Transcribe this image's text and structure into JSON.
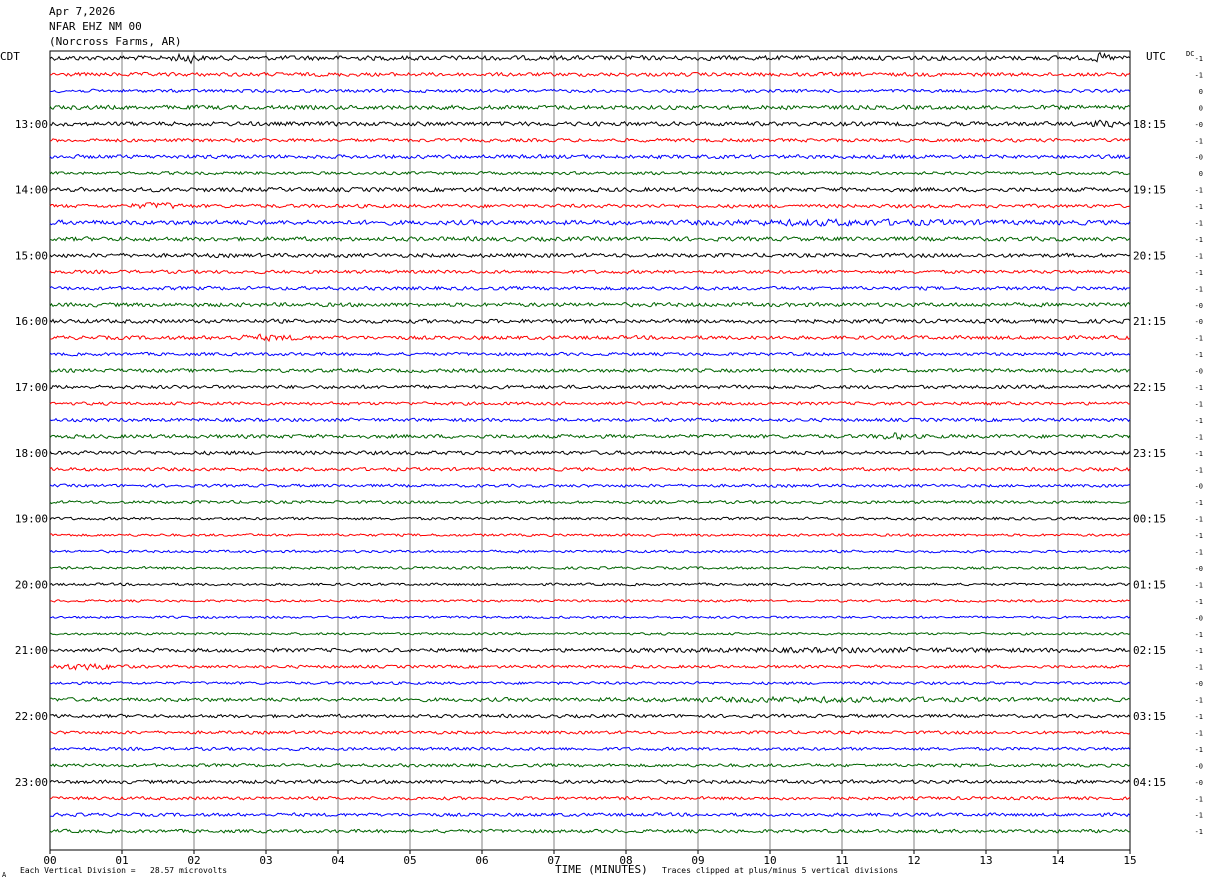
{
  "header": {
    "date": "Apr 7,2026",
    "station": "NFAR EHZ NM 00",
    "location": "(Norcross Farms, AR)"
  },
  "timezones": {
    "left": "CDT",
    "right": "UTC"
  },
  "dc_label": "DC",
  "footer": {
    "scale_note": "Each Vertical Division =   28.57 microvolts",
    "clip_note": "Traces clipped at plus/minus 5 vertical divisions",
    "x_title": "TIME (MINUTES)",
    "corner_mark": "A"
  },
  "colors": {
    "trace_cycle": [
      "#000000",
      "#ff0000",
      "#0000ff",
      "#006400"
    ],
    "grid": "#808080"
  },
  "chart_data": {
    "type": "line",
    "title": "NFAR EHZ NM 00",
    "xlabel": "TIME (MINUTES)",
    "xlim": [
      0,
      15
    ],
    "x_ticks": [
      "00",
      "01",
      "02",
      "03",
      "04",
      "05",
      "06",
      "07",
      "08",
      "09",
      "10",
      "11",
      "12",
      "13",
      "14",
      "15"
    ],
    "minutes_per_trace": 15,
    "trace_count": 48,
    "left_hour_labels": [
      {
        "trace": 4,
        "label": "13:00"
      },
      {
        "trace": 8,
        "label": "14:00"
      },
      {
        "trace": 12,
        "label": "15:00"
      },
      {
        "trace": 16,
        "label": "16:00"
      },
      {
        "trace": 20,
        "label": "17:00"
      },
      {
        "trace": 24,
        "label": "18:00"
      },
      {
        "trace": 28,
        "label": "19:00"
      },
      {
        "trace": 32,
        "label": "20:00"
      },
      {
        "trace": 36,
        "label": "21:00"
      },
      {
        "trace": 40,
        "label": "22:00"
      },
      {
        "trace": 44,
        "label": "23:00"
      }
    ],
    "right_hour_labels": [
      {
        "trace": 4,
        "label": "18:15"
      },
      {
        "trace": 8,
        "label": "19:15"
      },
      {
        "trace": 12,
        "label": "20:15"
      },
      {
        "trace": 16,
        "label": "21:15"
      },
      {
        "trace": 20,
        "label": "22:15"
      },
      {
        "trace": 24,
        "label": "23:15"
      },
      {
        "trace": 28,
        "label": "00:15"
      },
      {
        "trace": 32,
        "label": "01:15"
      },
      {
        "trace": 36,
        "label": "02:15"
      },
      {
        "trace": 40,
        "label": "03:15"
      },
      {
        "trace": 44,
        "label": "04:15"
      }
    ],
    "dc_offsets": [
      "-1",
      "-1",
      "0",
      "0",
      "-0",
      "-1",
      "-0",
      "0",
      "-1",
      "-1",
      "-1",
      "-1",
      "-1",
      "-1",
      "-1",
      "-0",
      "-0",
      "-1",
      "-1",
      "-0",
      "-1",
      "-1",
      "-1",
      "-1",
      "-1",
      "-1",
      "-0",
      "-1",
      "-1",
      "-1",
      "-1",
      "-0",
      "-1",
      "-1",
      "-0",
      "-1",
      "-1",
      "-1",
      "-0",
      "-1",
      "-1",
      "-1",
      "-1",
      "-0",
      "-0",
      "-1",
      "-1",
      "-1"
    ],
    "amplitude": [
      2.2,
      1.8,
      1.5,
      2.0,
      2.0,
      1.6,
      1.8,
      1.4,
      2.0,
      1.7,
      2.2,
      2.0,
      1.9,
      1.6,
      1.7,
      1.9,
      1.9,
      1.8,
      1.5,
      1.7,
      1.7,
      1.5,
      1.6,
      1.8,
      1.8,
      1.6,
      1.4,
      1.4,
      1.3,
      1.2,
      1.2,
      1.2,
      1.2,
      1.1,
      1.1,
      1.1,
      1.8,
      1.4,
      1.3,
      1.8,
      1.6,
      1.5,
      1.5,
      1.5,
      1.7,
      1.5,
      1.6,
      1.6
    ],
    "bursts": [
      {
        "trace": 0,
        "minute": 1.9,
        "width": 0.25,
        "gain": 2.5
      },
      {
        "trace": 0,
        "minute": 14.6,
        "width": 0.2,
        "gain": 2.3
      },
      {
        "trace": 4,
        "minute": 14.6,
        "width": 0.3,
        "gain": 2.0
      },
      {
        "trace": 9,
        "minute": 1.5,
        "width": 0.5,
        "gain": 2.2
      },
      {
        "trace": 10,
        "minute": 11.0,
        "width": 2.5,
        "gain": 1.6
      },
      {
        "trace": 17,
        "minute": 3.0,
        "width": 0.8,
        "gain": 1.8
      },
      {
        "trace": 23,
        "minute": 11.7,
        "width": 0.3,
        "gain": 2.2
      },
      {
        "trace": 36,
        "minute": 11.0,
        "width": 4.0,
        "gain": 1.5
      },
      {
        "trace": 37,
        "minute": 0.5,
        "width": 0.7,
        "gain": 2.6
      },
      {
        "trace": 39,
        "minute": 10.5,
        "width": 3.0,
        "gain": 1.7
      }
    ]
  }
}
